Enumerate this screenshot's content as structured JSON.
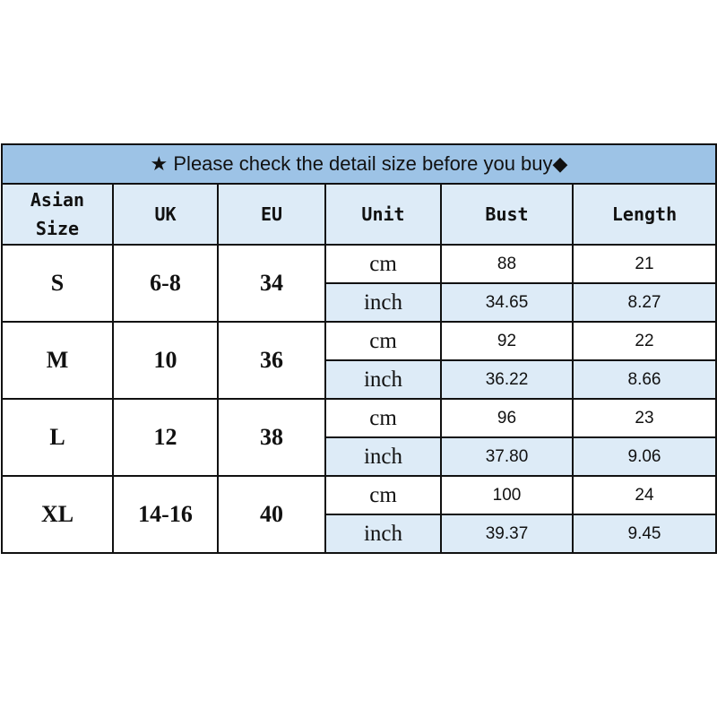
{
  "title": "★ Please check the detail size before you buy◆",
  "headers": [
    "Asian Size",
    "UK",
    "EU",
    "Unit",
    "Bust",
    "Length"
  ],
  "header_lines": {
    "asian": [
      "Asian",
      "Size"
    ]
  },
  "colors": {
    "title_bg": "#9dc3e6",
    "header_bg": "#ddebf7",
    "inch_row_bg": "#ddebf7"
  },
  "rows": [
    {
      "asian": "S",
      "uk": "6-8",
      "eu": "34",
      "cm": {
        "unit": "cm",
        "bust": "88",
        "length": "21"
      },
      "inch": {
        "unit": "inch",
        "bust": "34.65",
        "length": "8.27"
      }
    },
    {
      "asian": "M",
      "uk": "10",
      "eu": "36",
      "cm": {
        "unit": "cm",
        "bust": "92",
        "length": "22"
      },
      "inch": {
        "unit": "inch",
        "bust": "36.22",
        "length": "8.66"
      }
    },
    {
      "asian": "L",
      "uk": "12",
      "eu": "38",
      "cm": {
        "unit": "cm",
        "bust": "96",
        "length": "23"
      },
      "inch": {
        "unit": "inch",
        "bust": "37.80",
        "length": "9.06"
      }
    },
    {
      "asian": "XL",
      "uk": "14-16",
      "eu": "40",
      "cm": {
        "unit": "cm",
        "bust": "100",
        "length": "24"
      },
      "inch": {
        "unit": "inch",
        "bust": "39.37",
        "length": "9.45"
      }
    }
  ]
}
